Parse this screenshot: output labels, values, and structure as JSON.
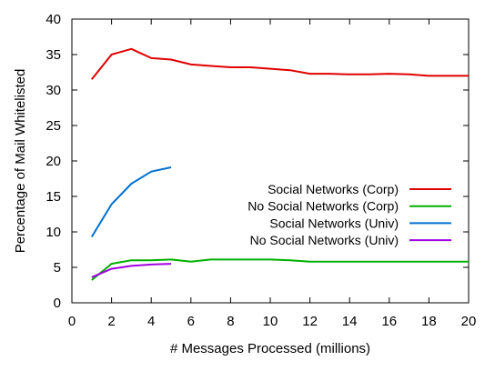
{
  "chart_data": {
    "type": "line",
    "title": "",
    "xlabel": "# Messages Processed (millions)",
    "ylabel": "Percentage of Mail Whitelisted",
    "xlim": [
      0,
      20
    ],
    "ylim": [
      0,
      40
    ],
    "xticks": [
      0,
      2,
      4,
      6,
      8,
      10,
      12,
      14,
      16,
      18,
      20
    ],
    "yticks": [
      0,
      5,
      10,
      15,
      20,
      25,
      30,
      35,
      40
    ],
    "grid": false,
    "legend_position": "right",
    "series": [
      {
        "name": "Social Networks (Corp)",
        "color": "#e00000",
        "x": [
          1,
          2,
          3,
          4,
          5,
          6,
          7,
          8,
          9,
          10,
          11,
          12,
          13,
          14,
          15,
          16,
          17,
          18,
          19,
          20
        ],
        "y": [
          31.5,
          35.0,
          35.8,
          34.5,
          34.3,
          33.6,
          33.4,
          33.2,
          33.2,
          33.0,
          32.8,
          32.3,
          32.3,
          32.2,
          32.2,
          32.3,
          32.2,
          32.0,
          32.0,
          32.0
        ]
      },
      {
        "name": "No Social Networks (Corp)",
        "color": "#00b000",
        "x": [
          1,
          2,
          3,
          4,
          5,
          6,
          7,
          8,
          9,
          10,
          11,
          12,
          13,
          14,
          15,
          16,
          17,
          18,
          19,
          20
        ],
        "y": [
          3.2,
          5.5,
          6.0,
          6.0,
          6.1,
          5.8,
          6.1,
          6.1,
          6.1,
          6.1,
          6.0,
          5.8,
          5.8,
          5.8,
          5.8,
          5.8,
          5.8,
          5.8,
          5.8,
          5.8
        ]
      },
      {
        "name": "Social Networks (Univ)",
        "color": "#0070d0",
        "x": [
          1,
          2,
          3,
          4,
          5
        ],
        "y": [
          9.3,
          13.9,
          16.8,
          18.5,
          19.1
        ]
      },
      {
        "name": "No Social Networks (Univ)",
        "color": "#a000e0",
        "x": [
          1,
          2,
          3,
          4,
          5
        ],
        "y": [
          3.6,
          4.8,
          5.2,
          5.4,
          5.5
        ]
      }
    ]
  }
}
